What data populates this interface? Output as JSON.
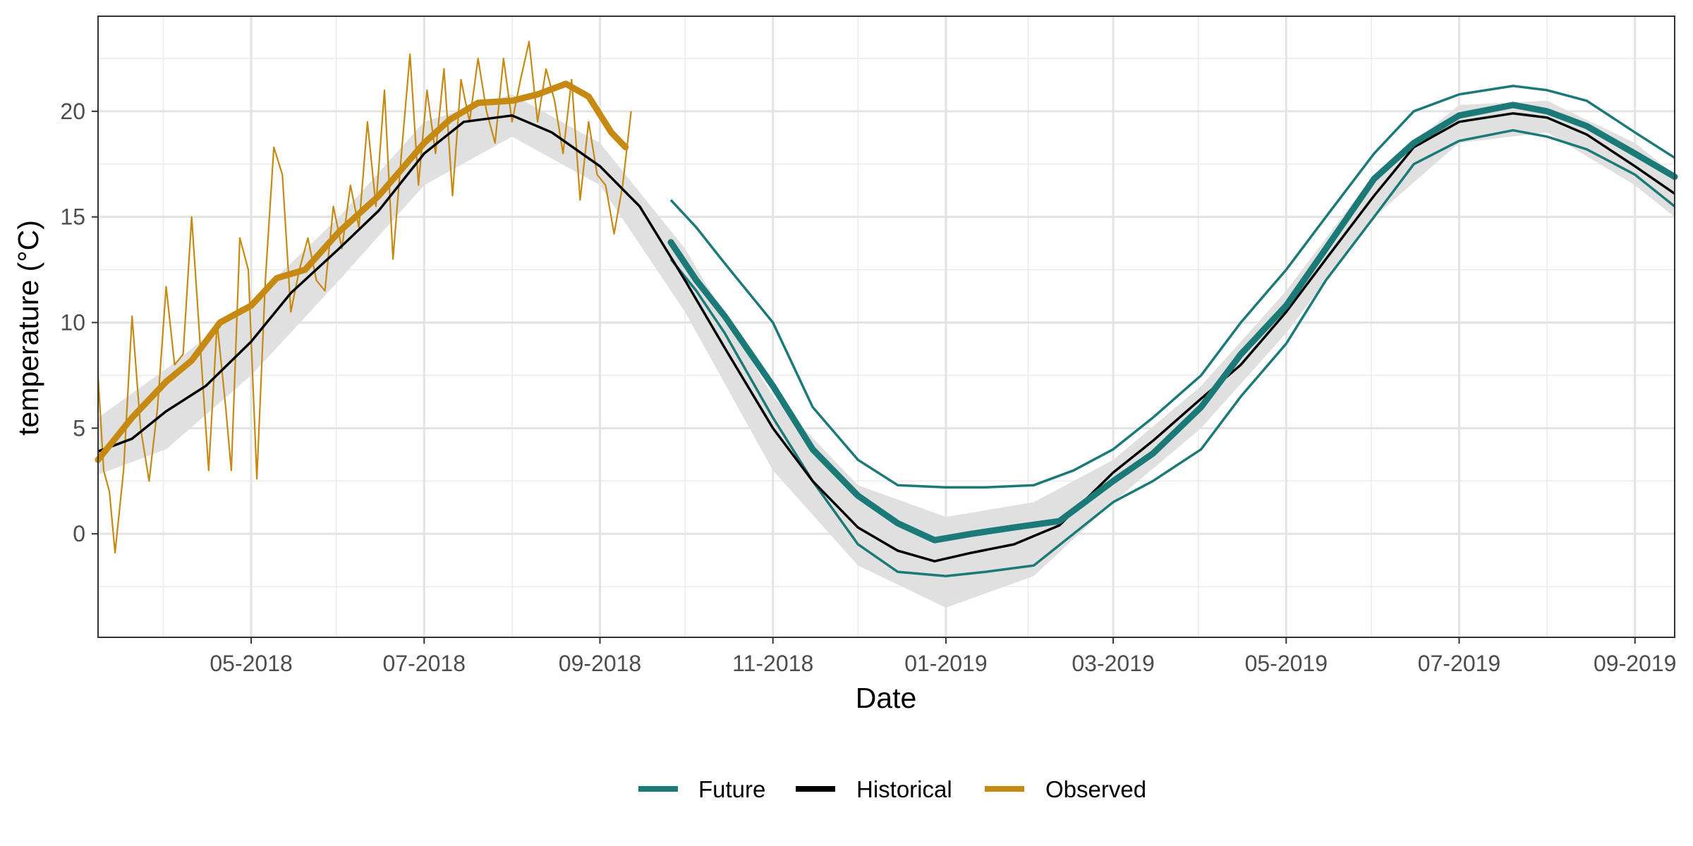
{
  "chart_data": {
    "type": "line",
    "xlabel": "Date",
    "ylabel": "temperature (°C)",
    "x_domain": [
      "2018-03-08",
      "2019-09-15"
    ],
    "ylim": [
      -4.9,
      24.5
    ],
    "x_ticks": [
      {
        "date": "2018-05-01",
        "label": "05-2018"
      },
      {
        "date": "2018-07-01",
        "label": "07-2018"
      },
      {
        "date": "2018-09-01",
        "label": "09-2018"
      },
      {
        "date": "2018-11-01",
        "label": "11-2018"
      },
      {
        "date": "2019-01-01",
        "label": "01-2019"
      },
      {
        "date": "2019-03-01",
        "label": "03-2019"
      },
      {
        "date": "2019-05-01",
        "label": "05-2019"
      },
      {
        "date": "2019-07-01",
        "label": "07-2019"
      },
      {
        "date": "2019-09-01",
        "label": "09-2019"
      }
    ],
    "y_ticks": [
      0,
      5,
      10,
      15,
      20
    ],
    "grid": true,
    "legend_position": "bottom",
    "legend": [
      {
        "label": "Future",
        "color": "#1b7a78"
      },
      {
        "label": "Historical",
        "color": "#000000"
      },
      {
        "label": "Observed",
        "color": "#c68a12"
      }
    ],
    "colors": {
      "future": "#1b7a78",
      "historical": "#000000",
      "observed": "#c68a12",
      "band": "#e0e0e0"
    },
    "series": [
      {
        "name": "Historical",
        "style": "mean-line",
        "points": [
          [
            "2018-03-08",
            3.9
          ],
          [
            "2018-03-20",
            4.5
          ],
          [
            "2018-04-01",
            5.8
          ],
          [
            "2018-04-15",
            7.0
          ],
          [
            "2018-05-01",
            9.1
          ],
          [
            "2018-05-15",
            11.4
          ],
          [
            "2018-06-01",
            13.5
          ],
          [
            "2018-06-15",
            15.3
          ],
          [
            "2018-07-01",
            18.0
          ],
          [
            "2018-07-15",
            19.5
          ],
          [
            "2018-08-01",
            19.8
          ],
          [
            "2018-08-15",
            19.0
          ],
          [
            "2018-09-01",
            17.4
          ],
          [
            "2018-09-15",
            15.5
          ],
          [
            "2018-10-01",
            12.0
          ],
          [
            "2018-10-15",
            8.8
          ],
          [
            "2018-11-01",
            5.0
          ],
          [
            "2018-11-15",
            2.5
          ],
          [
            "2018-12-01",
            0.3
          ],
          [
            "2018-12-15",
            -0.8
          ],
          [
            "2018-12-28",
            -1.3
          ],
          [
            "2019-01-10",
            -0.9
          ],
          [
            "2019-01-25",
            -0.5
          ],
          [
            "2019-02-10",
            0.4
          ],
          [
            "2019-03-01",
            2.9
          ],
          [
            "2019-03-15",
            4.4
          ],
          [
            "2019-04-01",
            6.4
          ],
          [
            "2019-04-15",
            8.0
          ],
          [
            "2019-05-01",
            10.5
          ],
          [
            "2019-05-15",
            13.0
          ],
          [
            "2019-06-01",
            16.0
          ],
          [
            "2019-06-15",
            18.3
          ],
          [
            "2019-07-01",
            19.5
          ],
          [
            "2019-07-20",
            19.9
          ],
          [
            "2019-08-01",
            19.7
          ],
          [
            "2019-08-15",
            18.9
          ],
          [
            "2019-09-01",
            17.4
          ],
          [
            "2019-09-15",
            16.1
          ]
        ]
      },
      {
        "name": "Historical range",
        "style": "band",
        "upper": [
          [
            "2018-03-08",
            5.5
          ],
          [
            "2018-04-01",
            7.8
          ],
          [
            "2018-05-01",
            11.0
          ],
          [
            "2018-06-01",
            15.0
          ],
          [
            "2018-07-01",
            19.5
          ],
          [
            "2018-08-01",
            20.8
          ],
          [
            "2018-09-01",
            18.5
          ],
          [
            "2018-10-01",
            13.5
          ],
          [
            "2018-11-01",
            6.5
          ],
          [
            "2018-12-01",
            2.3
          ],
          [
            "2019-01-01",
            0.8
          ],
          [
            "2019-02-01",
            1.5
          ],
          [
            "2019-03-01",
            3.5
          ],
          [
            "2019-04-01",
            7.0
          ],
          [
            "2019-05-01",
            11.5
          ],
          [
            "2019-06-01",
            17.0
          ],
          [
            "2019-07-01",
            20.3
          ],
          [
            "2019-08-01",
            20.5
          ],
          [
            "2019-09-01",
            18.5
          ],
          [
            "2019-09-15",
            17.0
          ]
        ],
        "lower": [
          [
            "2018-03-08",
            2.8
          ],
          [
            "2018-04-01",
            4.0
          ],
          [
            "2018-05-01",
            7.5
          ],
          [
            "2018-06-01",
            12.0
          ],
          [
            "2018-07-01",
            16.5
          ],
          [
            "2018-08-01",
            18.8
          ],
          [
            "2018-09-01",
            16.5
          ],
          [
            "2018-10-01",
            10.5
          ],
          [
            "2018-11-01",
            3.0
          ],
          [
            "2018-12-01",
            -1.5
          ],
          [
            "2019-01-01",
            -3.5
          ],
          [
            "2019-02-01",
            -2.0
          ],
          [
            "2019-03-01",
            1.5
          ],
          [
            "2019-04-01",
            5.0
          ],
          [
            "2019-05-01",
            9.5
          ],
          [
            "2019-06-01",
            15.0
          ],
          [
            "2019-07-01",
            18.5
          ],
          [
            "2019-08-01",
            19.0
          ],
          [
            "2019-09-01",
            16.5
          ],
          [
            "2019-09-15",
            15.0
          ]
        ]
      },
      {
        "name": "Observed",
        "style": "mean-line",
        "points": [
          [
            "2018-03-08",
            3.5
          ],
          [
            "2018-03-20",
            5.5
          ],
          [
            "2018-04-01",
            7.2
          ],
          [
            "2018-04-10",
            8.2
          ],
          [
            "2018-04-20",
            10.0
          ],
          [
            "2018-05-01",
            10.8
          ],
          [
            "2018-05-10",
            12.1
          ],
          [
            "2018-05-20",
            12.5
          ],
          [
            "2018-06-01",
            14.3
          ],
          [
            "2018-06-15",
            16.0
          ],
          [
            "2018-07-01",
            18.5
          ],
          [
            "2018-07-10",
            19.6
          ],
          [
            "2018-07-20",
            20.4
          ],
          [
            "2018-08-01",
            20.5
          ],
          [
            "2018-08-10",
            20.8
          ],
          [
            "2018-08-20",
            21.3
          ],
          [
            "2018-08-28",
            20.7
          ],
          [
            "2018-09-05",
            19.0
          ],
          [
            "2018-09-10",
            18.3
          ]
        ]
      },
      {
        "name": "Observed daily",
        "style": "thin-line",
        "points": [
          [
            "2018-03-08",
            7.5
          ],
          [
            "2018-03-10",
            3.0
          ],
          [
            "2018-03-12",
            2.0
          ],
          [
            "2018-03-14",
            -0.9
          ],
          [
            "2018-03-17",
            3.0
          ],
          [
            "2018-03-20",
            10.3
          ],
          [
            "2018-03-23",
            5.0
          ],
          [
            "2018-03-26",
            2.5
          ],
          [
            "2018-03-29",
            6.0
          ],
          [
            "2018-04-01",
            11.7
          ],
          [
            "2018-04-04",
            8.0
          ],
          [
            "2018-04-07",
            8.5
          ],
          [
            "2018-04-10",
            15.0
          ],
          [
            "2018-04-13",
            9.0
          ],
          [
            "2018-04-16",
            3.0
          ],
          [
            "2018-04-19",
            10.0
          ],
          [
            "2018-04-22",
            6.0
          ],
          [
            "2018-04-24",
            3.0
          ],
          [
            "2018-04-27",
            14.0
          ],
          [
            "2018-04-30",
            12.5
          ],
          [
            "2018-05-03",
            2.6
          ],
          [
            "2018-05-06",
            12.0
          ],
          [
            "2018-05-09",
            18.3
          ],
          [
            "2018-05-12",
            17.0
          ],
          [
            "2018-05-15",
            10.5
          ],
          [
            "2018-05-18",
            12.5
          ],
          [
            "2018-05-21",
            14.0
          ],
          [
            "2018-05-24",
            12.0
          ],
          [
            "2018-05-27",
            11.5
          ],
          [
            "2018-05-30",
            15.5
          ],
          [
            "2018-06-02",
            13.5
          ],
          [
            "2018-06-05",
            16.5
          ],
          [
            "2018-06-08",
            14.5
          ],
          [
            "2018-06-11",
            19.5
          ],
          [
            "2018-06-14",
            15.5
          ],
          [
            "2018-06-17",
            21.0
          ],
          [
            "2018-06-20",
            13.0
          ],
          [
            "2018-06-23",
            18.0
          ],
          [
            "2018-06-26",
            22.7
          ],
          [
            "2018-06-29",
            16.5
          ],
          [
            "2018-07-02",
            21.0
          ],
          [
            "2018-07-05",
            18.0
          ],
          [
            "2018-07-08",
            22.0
          ],
          [
            "2018-07-11",
            16.0
          ],
          [
            "2018-07-14",
            21.5
          ],
          [
            "2018-07-17",
            19.5
          ],
          [
            "2018-07-20",
            22.5
          ],
          [
            "2018-07-23",
            20.0
          ],
          [
            "2018-07-26",
            18.5
          ],
          [
            "2018-07-29",
            22.5
          ],
          [
            "2018-08-01",
            19.5
          ],
          [
            "2018-08-04",
            21.5
          ],
          [
            "2018-08-07",
            23.3
          ],
          [
            "2018-08-10",
            19.5
          ],
          [
            "2018-08-13",
            22.0
          ],
          [
            "2018-08-16",
            20.5
          ],
          [
            "2018-08-19",
            18.0
          ],
          [
            "2018-08-22",
            21.5
          ],
          [
            "2018-08-25",
            15.8
          ],
          [
            "2018-08-28",
            19.5
          ],
          [
            "2018-08-31",
            17.0
          ],
          [
            "2018-09-03",
            16.5
          ],
          [
            "2018-09-06",
            14.2
          ],
          [
            "2018-09-09",
            16.5
          ],
          [
            "2018-09-12",
            20.0
          ]
        ]
      },
      {
        "name": "Future",
        "style": "mean-line",
        "points": [
          [
            "2018-09-26",
            13.8
          ],
          [
            "2018-10-05",
            12.0
          ],
          [
            "2018-10-15",
            10.3
          ],
          [
            "2018-11-01",
            7.0
          ],
          [
            "2018-11-15",
            4.0
          ],
          [
            "2018-12-01",
            1.8
          ],
          [
            "2018-12-15",
            0.5
          ],
          [
            "2018-12-28",
            -0.3
          ],
          [
            "2019-01-10",
            0.0
          ],
          [
            "2019-01-25",
            0.3
          ],
          [
            "2019-02-10",
            0.6
          ],
          [
            "2019-03-01",
            2.5
          ],
          [
            "2019-03-15",
            3.8
          ],
          [
            "2019-04-01",
            6.0
          ],
          [
            "2019-04-15",
            8.5
          ],
          [
            "2019-05-01",
            10.8
          ],
          [
            "2019-05-15",
            13.5
          ],
          [
            "2019-06-01",
            16.8
          ],
          [
            "2019-06-15",
            18.5
          ],
          [
            "2019-07-01",
            19.8
          ],
          [
            "2019-07-20",
            20.3
          ],
          [
            "2019-08-01",
            20.0
          ],
          [
            "2019-08-15",
            19.3
          ],
          [
            "2019-09-01",
            18.0
          ],
          [
            "2019-09-15",
            16.9
          ]
        ]
      },
      {
        "name": "Future upper",
        "style": "range-line",
        "points": [
          [
            "2018-09-26",
            15.8
          ],
          [
            "2018-10-05",
            14.5
          ],
          [
            "2018-10-15",
            12.8
          ],
          [
            "2018-11-01",
            10.0
          ],
          [
            "2018-11-15",
            6.0
          ],
          [
            "2018-12-01",
            3.5
          ],
          [
            "2018-12-15",
            2.3
          ],
          [
            "2019-01-01",
            2.2
          ],
          [
            "2019-01-15",
            2.2
          ],
          [
            "2019-02-01",
            2.3
          ],
          [
            "2019-02-15",
            3.0
          ],
          [
            "2019-03-01",
            4.0
          ],
          [
            "2019-03-15",
            5.5
          ],
          [
            "2019-04-01",
            7.5
          ],
          [
            "2019-04-15",
            10.0
          ],
          [
            "2019-05-01",
            12.5
          ],
          [
            "2019-05-15",
            15.0
          ],
          [
            "2019-06-01",
            18.0
          ],
          [
            "2019-06-15",
            20.0
          ],
          [
            "2019-07-01",
            20.8
          ],
          [
            "2019-07-20",
            21.2
          ],
          [
            "2019-08-01",
            21.0
          ],
          [
            "2019-08-15",
            20.5
          ],
          [
            "2019-09-01",
            19.0
          ],
          [
            "2019-09-15",
            17.8
          ]
        ]
      },
      {
        "name": "Future lower",
        "style": "range-line",
        "points": [
          [
            "2018-09-26",
            13.0
          ],
          [
            "2018-10-05",
            11.5
          ],
          [
            "2018-10-15",
            9.5
          ],
          [
            "2018-11-01",
            5.5
          ],
          [
            "2018-11-15",
            2.5
          ],
          [
            "2018-12-01",
            -0.5
          ],
          [
            "2018-12-15",
            -1.8
          ],
          [
            "2019-01-01",
            -2.0
          ],
          [
            "2019-01-15",
            -1.8
          ],
          [
            "2019-02-01",
            -1.5
          ],
          [
            "2019-02-15",
            0.0
          ],
          [
            "2019-03-01",
            1.5
          ],
          [
            "2019-03-15",
            2.5
          ],
          [
            "2019-04-01",
            4.0
          ],
          [
            "2019-04-15",
            6.5
          ],
          [
            "2019-05-01",
            9.0
          ],
          [
            "2019-05-15",
            12.0
          ],
          [
            "2019-06-01",
            15.0
          ],
          [
            "2019-06-15",
            17.5
          ],
          [
            "2019-07-01",
            18.6
          ],
          [
            "2019-07-20",
            19.1
          ],
          [
            "2019-08-01",
            18.8
          ],
          [
            "2019-08-15",
            18.2
          ],
          [
            "2019-09-01",
            17.0
          ],
          [
            "2019-09-15",
            15.5
          ]
        ]
      }
    ]
  }
}
